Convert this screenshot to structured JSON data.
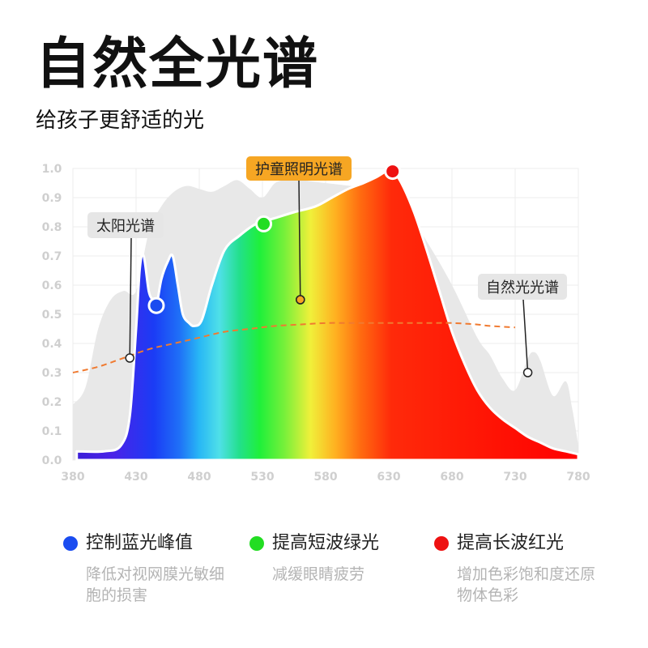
{
  "page": {
    "title": "自然全光谱",
    "subtitle": "给孩子更舒适的光"
  },
  "chart_data": {
    "type": "area",
    "xlim": [
      380,
      780
    ],
    "ylim": [
      0,
      1.0
    ],
    "x_ticks": [
      "380",
      "430",
      "480",
      "530",
      "580",
      "630",
      "680",
      "730",
      "780"
    ],
    "y_ticks": [
      "0.0",
      "0.1",
      "0.2",
      "0.3",
      "0.4",
      "0.5",
      "0.6",
      "0.7",
      "0.8",
      "0.9",
      "1.0"
    ],
    "grid": true,
    "series": [
      {
        "name": "护童照明光谱",
        "color": "#ff0000",
        "x": [
          383,
          405,
          418,
          425,
          430,
          433,
          436,
          440,
          443,
          446,
          450,
          455,
          459,
          463,
          467,
          472,
          476,
          482,
          490,
          500,
          512,
          525,
          540,
          555,
          572,
          585,
          598,
          610,
          620,
          628,
          633,
          640,
          650,
          660,
          670,
          680,
          690,
          700,
          710,
          720,
          730,
          740,
          750,
          760,
          770,
          780
        ],
        "y": [
          0.03,
          0.03,
          0.05,
          0.15,
          0.45,
          0.66,
          0.7,
          0.58,
          0.55,
          0.53,
          0.62,
          0.68,
          0.7,
          0.6,
          0.5,
          0.47,
          0.46,
          0.48,
          0.6,
          0.72,
          0.77,
          0.81,
          0.83,
          0.85,
          0.87,
          0.9,
          0.93,
          0.95,
          0.97,
          0.99,
          0.99,
          0.95,
          0.85,
          0.72,
          0.58,
          0.44,
          0.33,
          0.24,
          0.18,
          0.14,
          0.11,
          0.08,
          0.06,
          0.04,
          0.03,
          0.02
        ]
      },
      {
        "name": "太阳光谱",
        "color": "#e8e8e8",
        "x": [
          380,
          390,
          400,
          410,
          420,
          430,
          440,
          450,
          460,
          470,
          480,
          490,
          500,
          510,
          520,
          530,
          540,
          550,
          560,
          580,
          600,
          620,
          640,
          660,
          680,
          700,
          710,
          720,
          730,
          740,
          745,
          750,
          760,
          770,
          775,
          780
        ],
        "y": [
          0.19,
          0.25,
          0.45,
          0.55,
          0.58,
          0.58,
          0.78,
          0.87,
          0.92,
          0.94,
          0.93,
          0.92,
          0.94,
          0.96,
          0.93,
          0.9,
          0.95,
          0.96,
          0.96,
          0.95,
          0.94,
          0.93,
          0.88,
          0.75,
          0.6,
          0.42,
          0.36,
          0.28,
          0.24,
          0.35,
          0.37,
          0.34,
          0.22,
          0.27,
          0.18,
          0.05
        ]
      },
      {
        "name": "自然光光谱",
        "color": "#f07a30",
        "x": [
          380,
          400,
          420,
          440,
          460,
          480,
          500,
          520,
          540,
          560,
          580,
          600,
          620,
          640,
          660,
          680,
          700,
          710,
          730
        ],
        "y": [
          0.3,
          0.32,
          0.35,
          0.38,
          0.4,
          0.42,
          0.44,
          0.45,
          0.46,
          0.465,
          0.47,
          0.47,
          0.47,
          0.47,
          0.47,
          0.47,
          0.465,
          0.46,
          0.455
        ]
      }
    ],
    "markers": [
      {
        "name": "控制蓝光峰值",
        "x": 446,
        "y": 0.53,
        "color": "#1a4cf0"
      },
      {
        "name": "提高短波绿光",
        "x": 531,
        "y": 0.81,
        "color": "#22dd22"
      },
      {
        "name": "提高长波红光",
        "x": 633,
        "y": 0.99,
        "color": "#ee1111"
      }
    ],
    "annotations": [
      {
        "text": "太阳光谱",
        "x": 425,
        "y": 0.35
      },
      {
        "text": "护童照明光谱",
        "x": 560,
        "y": 0.55
      },
      {
        "text": "自然光光谱",
        "x": 740,
        "y": 0.3
      }
    ]
  },
  "legend": [
    {
      "label": "控制蓝光峰值",
      "color": "#1a4cf0",
      "desc": "降低对视网膜光敏细胞的损害"
    },
    {
      "label": "提高短波绿光",
      "color": "#22dd22",
      "desc": "减缓眼睛疲劳"
    },
    {
      "label": "提高长波红光",
      "color": "#ee1111",
      "desc": "增加色彩饱和度还原物体色彩"
    }
  ]
}
